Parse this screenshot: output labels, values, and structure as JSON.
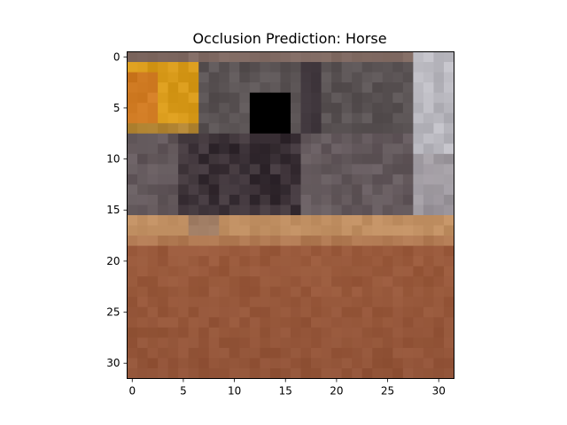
{
  "chart_data": {
    "type": "heatmap",
    "title": "Occlusion Prediction: Horse",
    "xlabel": "",
    "ylabel": "",
    "xlim": [
      -0.5,
      31.5
    ],
    "ylim": [
      31.5,
      -0.5
    ],
    "x_ticks": [
      0,
      5,
      10,
      15,
      20,
      25,
      30
    ],
    "y_ticks": [
      0,
      5,
      10,
      15,
      20,
      25,
      30
    ],
    "grid": false,
    "image_grid": [
      32,
      32
    ],
    "occlusion_patch": {
      "rows": [
        4,
        7
      ],
      "cols": [
        12,
        15
      ],
      "color": "#000000"
    },
    "dominant_colors": {
      "sky_band": "#5a5354",
      "sign_yellow": "#d89a1a",
      "sign_orange": "#cf7a22",
      "right_light": "#b9b8bf",
      "horse_dark": "#2b2228",
      "fence_gray": "#6a5d62",
      "sand_light": "#c08f62",
      "ground_brown": "#9a5a3c",
      "ground_dark": "#8c4f35"
    }
  }
}
